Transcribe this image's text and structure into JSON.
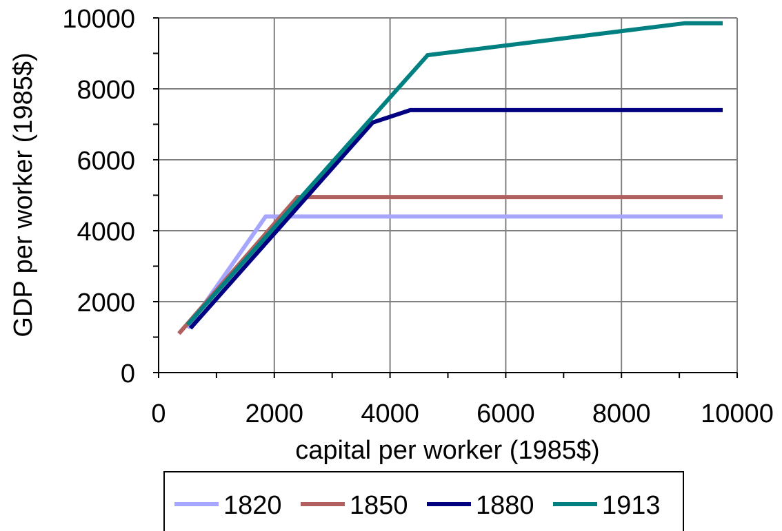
{
  "chart_data": {
    "type": "line",
    "title": "",
    "xlabel": "capital per worker (1985$)",
    "ylabel": "GDP per worker (1985$)",
    "xlim": [
      0,
      10000
    ],
    "ylim": [
      0,
      10000
    ],
    "x_ticks": [
      0,
      2000,
      4000,
      6000,
      8000,
      10000
    ],
    "y_ticks": [
      0,
      2000,
      4000,
      6000,
      8000,
      10000
    ],
    "x_tick_labels": [
      "0",
      "2000",
      "4000",
      "6000",
      "8000",
      "10000"
    ],
    "y_tick_labels": [
      "0",
      "2000",
      "4000",
      "6000",
      "8000",
      "10000"
    ],
    "x_minor_step": 1000,
    "y_minor_step": 1000,
    "grid": true,
    "legend_position": "bottom",
    "series": [
      {
        "name": "1820",
        "color": "#a6a6ff",
        "points": [
          [
            500,
            1250
          ],
          [
            1850,
            4400
          ],
          [
            9750,
            4400
          ]
        ]
      },
      {
        "name": "1850",
        "color": "#b0605e",
        "points": [
          [
            350,
            1100
          ],
          [
            2400,
            4950
          ],
          [
            9750,
            4950
          ]
        ]
      },
      {
        "name": "1880",
        "color": "#000080",
        "points": [
          [
            550,
            1250
          ],
          [
            3700,
            7050
          ],
          [
            4350,
            7400
          ],
          [
            9750,
            7400
          ]
        ]
      },
      {
        "name": "1913",
        "color": "#008080",
        "points": [
          [
            500,
            1350
          ],
          [
            4650,
            8950
          ],
          [
            9100,
            9850
          ],
          [
            9750,
            9850
          ]
        ]
      }
    ]
  }
}
